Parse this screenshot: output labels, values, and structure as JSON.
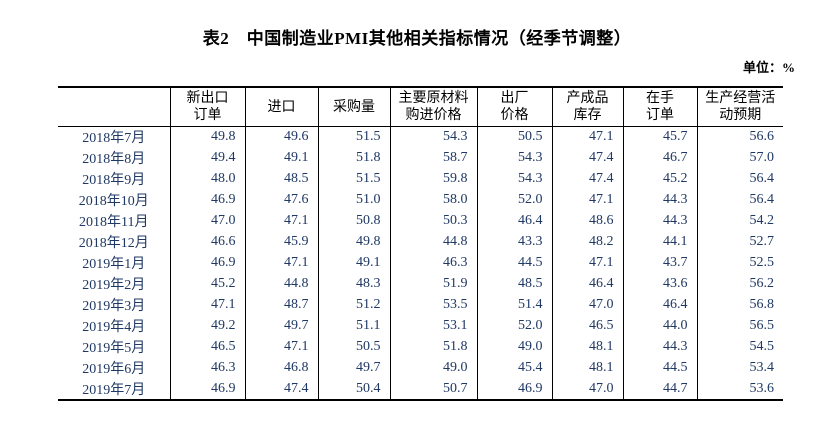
{
  "title": "表2　中国制造业PMI其他相关指标情况（经季节调整）",
  "unit_label": "单位：%",
  "colors": {
    "data_text": "#1f3864",
    "heading_text": "#000000",
    "border": "#000000",
    "background": "#ffffff"
  },
  "table": {
    "columns": [
      {
        "key": "month",
        "lines": []
      },
      {
        "key": "new-export-orders",
        "lines": [
          "新出口",
          "订单"
        ]
      },
      {
        "key": "imports",
        "lines": [
          "进口"
        ]
      },
      {
        "key": "purchasing-volume",
        "lines": [
          "采购量"
        ]
      },
      {
        "key": "main-raw-material-purchase-price",
        "lines": [
          "主要原材料",
          "购进价格"
        ]
      },
      {
        "key": "ex-factory-price",
        "lines": [
          "出厂",
          "价格"
        ]
      },
      {
        "key": "finished-goods-inventory",
        "lines": [
          "产成品",
          "库存"
        ]
      },
      {
        "key": "orders-on-hand",
        "lines": [
          "在手",
          "订单"
        ]
      },
      {
        "key": "business-activity-expectation",
        "lines": [
          "生产经营活",
          "动预期"
        ]
      }
    ],
    "rows": [
      {
        "month": "2018年7月",
        "values": [
          "49.8",
          "49.6",
          "51.5",
          "54.3",
          "50.5",
          "47.1",
          "45.7",
          "56.6"
        ]
      },
      {
        "month": "2018年8月",
        "values": [
          "49.4",
          "49.1",
          "51.8",
          "58.7",
          "54.3",
          "47.4",
          "46.7",
          "57.0"
        ]
      },
      {
        "month": "2018年9月",
        "values": [
          "48.0",
          "48.5",
          "51.5",
          "59.8",
          "54.3",
          "47.4",
          "45.2",
          "56.4"
        ]
      },
      {
        "month": "2018年10月",
        "values": [
          "46.9",
          "47.6",
          "51.0",
          "58.0",
          "52.0",
          "47.1",
          "44.3",
          "56.4"
        ]
      },
      {
        "month": "2018年11月",
        "values": [
          "47.0",
          "47.1",
          "50.8",
          "50.3",
          "46.4",
          "48.6",
          "44.3",
          "54.2"
        ]
      },
      {
        "month": "2018年12月",
        "values": [
          "46.6",
          "45.9",
          "49.8",
          "44.8",
          "43.3",
          "48.2",
          "44.1",
          "52.7"
        ]
      },
      {
        "month": "2019年1月",
        "values": [
          "46.9",
          "47.1",
          "49.1",
          "46.3",
          "44.5",
          "47.1",
          "43.7",
          "52.5"
        ]
      },
      {
        "month": "2019年2月",
        "values": [
          "45.2",
          "44.8",
          "48.3",
          "51.9",
          "48.5",
          "46.4",
          "43.6",
          "56.2"
        ]
      },
      {
        "month": "2019年3月",
        "values": [
          "47.1",
          "48.7",
          "51.2",
          "53.5",
          "51.4",
          "47.0",
          "46.4",
          "56.8"
        ]
      },
      {
        "month": "2019年4月",
        "values": [
          "49.2",
          "49.7",
          "51.1",
          "53.1",
          "52.0",
          "46.5",
          "44.0",
          "56.5"
        ]
      },
      {
        "month": "2019年5月",
        "values": [
          "46.5",
          "47.1",
          "50.5",
          "51.8",
          "49.0",
          "48.1",
          "44.3",
          "54.5"
        ]
      },
      {
        "month": "2019年6月",
        "values": [
          "46.3",
          "46.8",
          "49.7",
          "49.0",
          "45.4",
          "48.1",
          "44.5",
          "53.4"
        ]
      },
      {
        "month": "2019年7月",
        "values": [
          "46.9",
          "47.4",
          "50.4",
          "50.7",
          "46.9",
          "47.0",
          "44.7",
          "53.6"
        ]
      }
    ]
  }
}
